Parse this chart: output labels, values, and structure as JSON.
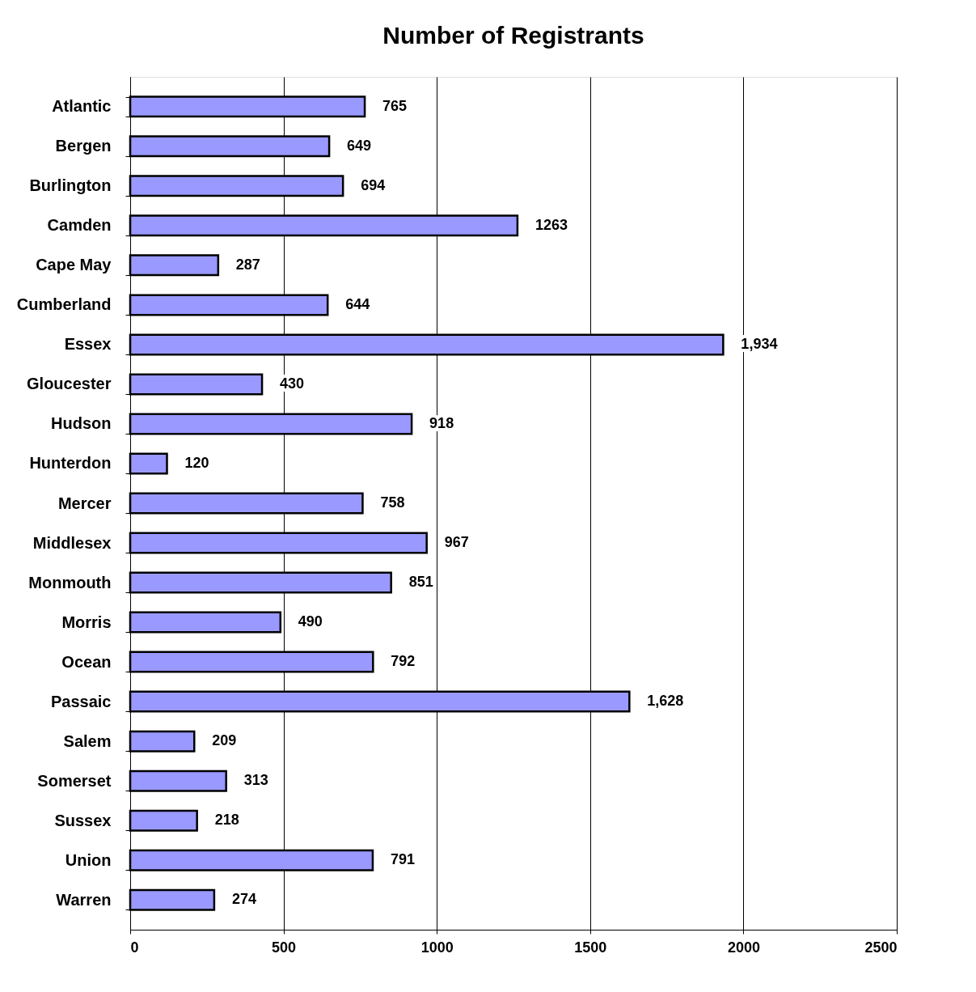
{
  "chart_data": {
    "type": "bar",
    "orientation": "horizontal",
    "title": "Number of Registrants",
    "categories": [
      "Atlantic",
      "Bergen",
      "Burlington",
      "Camden",
      "Cape May",
      "Cumberland",
      "Essex",
      "Gloucester",
      "Hudson",
      "Hunterdon",
      "Mercer",
      "Middlesex",
      "Monmouth",
      "Morris",
      "Ocean",
      "Passaic",
      "Salem",
      "Somerset",
      "Sussex",
      "Union",
      "Warren"
    ],
    "values": [
      765,
      649,
      694,
      1263,
      287,
      644,
      1934,
      430,
      918,
      120,
      758,
      967,
      851,
      490,
      792,
      1628,
      209,
      313,
      218,
      791,
      274
    ],
    "value_labels": [
      "765",
      "649",
      "694",
      "1263",
      "287",
      "644",
      "1,934",
      "430",
      "918",
      "120",
      "758",
      "967",
      "851",
      "490",
      "792",
      "1,628",
      "209",
      "313",
      "218",
      "791",
      "274"
    ],
    "color": "#9999ff",
    "xlim": [
      0,
      2500
    ],
    "xticks": [
      0,
      500,
      1000,
      1500,
      2000,
      2500
    ],
    "grid": "x"
  }
}
